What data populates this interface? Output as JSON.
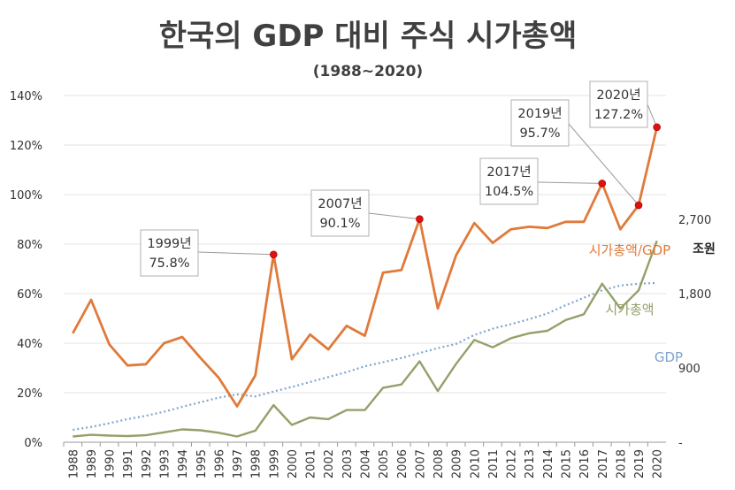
{
  "chart_data": {
    "type": "line",
    "title": "한국의 GDP 대비 주식 시가총액",
    "subtitle": "(1988~2020)",
    "categories": [
      "1988",
      "1989",
      "1990",
      "1991",
      "1992",
      "1993",
      "1994",
      "1995",
      "1996",
      "1997",
      "1998",
      "1999",
      "2000",
      "2001",
      "2002",
      "2003",
      "2004",
      "2005",
      "2006",
      "2007",
      "2008",
      "2009",
      "2010",
      "2011",
      "2012",
      "2013",
      "2014",
      "2015",
      "2016",
      "2017",
      "2018",
      "2019",
      "2020"
    ],
    "left_axis": {
      "ticks": [
        "0%",
        "20%",
        "40%",
        "60%",
        "80%",
        "100%",
        "120%",
        "140%"
      ],
      "ylim": [
        0,
        140
      ]
    },
    "right_axis": {
      "unit_label": "조원",
      "ticks": [
        "-",
        "900",
        "1,800",
        "2,700"
      ],
      "ylim": [
        0,
        4200
      ]
    },
    "series": [
      {
        "name": "시가총액/GDP",
        "axis": "left",
        "color": "#E07A3A",
        "values": [
          44,
          57.5,
          39.5,
          31,
          31.5,
          40,
          42.5,
          34,
          26,
          14.5,
          27,
          75.8,
          33.5,
          43.5,
          37.5,
          47,
          43,
          68.5,
          69.5,
          90.1,
          54,
          75.5,
          88.5,
          80.5,
          86,
          87,
          86.5,
          89,
          89,
          104.5,
          86,
          95.7,
          127.2
        ]
      },
      {
        "name": "시가총액",
        "axis": "right",
        "color": "#94A06A",
        "values": [
          70,
          90,
          80,
          75,
          85,
          120,
          155,
          145,
          115,
          70,
          140,
          450,
          210,
          300,
          280,
          390,
          390,
          660,
          700,
          980,
          620,
          950,
          1240,
          1150,
          1260,
          1320,
          1350,
          1480,
          1550,
          1920,
          1620,
          1840,
          2440
        ]
      },
      {
        "name": "GDP",
        "axis": "right",
        "color": "#7FA4CF",
        "dashed": true,
        "values": [
          150,
          185,
          230,
          280,
          320,
          370,
          430,
          485,
          540,
          580,
          555,
          615,
          670,
          730,
          790,
          850,
          920,
          970,
          1020,
          1080,
          1140,
          1190,
          1300,
          1375,
          1430,
          1490,
          1560,
          1660,
          1750,
          1840,
          1900,
          1920,
          1930
        ]
      }
    ],
    "annotations": [
      {
        "label": "1999년",
        "value": "75.8%",
        "year": "1999"
      },
      {
        "label": "2007년",
        "value": "90.1%",
        "year": "2007"
      },
      {
        "label": "2017년",
        "value": "104.5%",
        "year": "2017"
      },
      {
        "label": "2019년",
        "value": "95.7%",
        "year": "2019"
      },
      {
        "label": "2020년",
        "value": "127.2%",
        "year": "2020"
      }
    ],
    "grid": true,
    "legend": "inline labels at right"
  }
}
